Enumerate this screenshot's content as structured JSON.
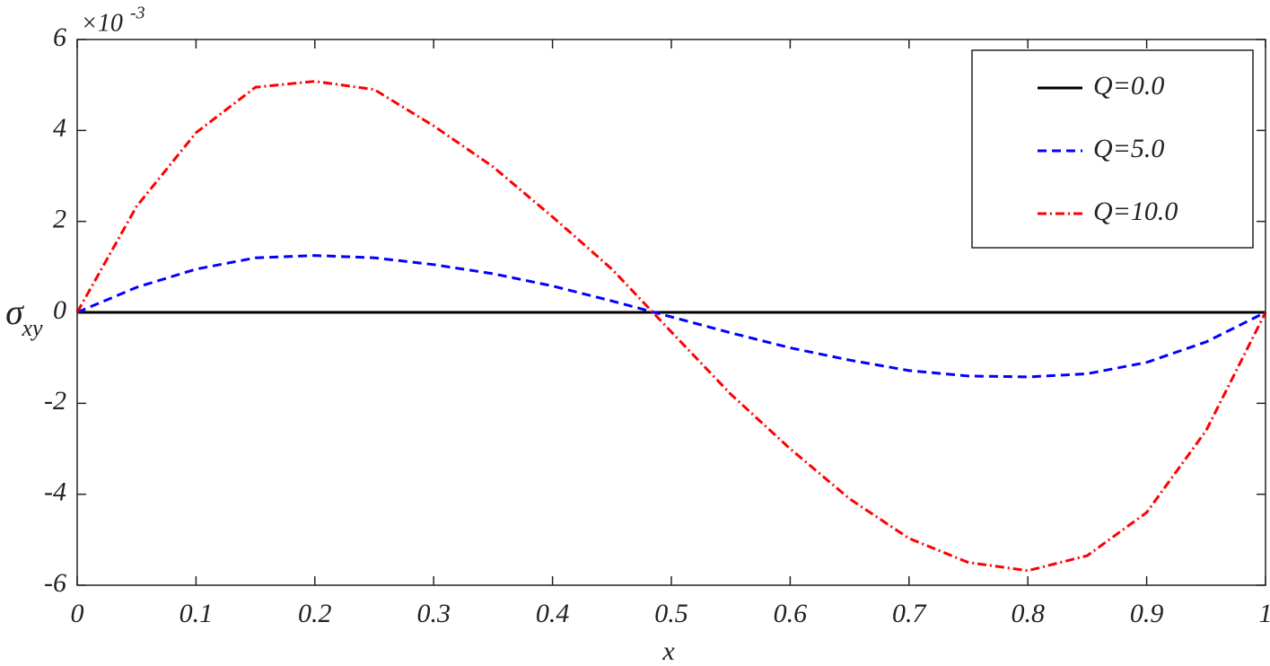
{
  "chart_data": {
    "type": "line",
    "x_label": "x",
    "y_label": "σ",
    "y_label_subscript": "xy",
    "axis_multiplier": {
      "base": "×10",
      "exponent": "-3"
    },
    "x": [
      0,
      0.05,
      0.1,
      0.15,
      0.2,
      0.25,
      0.3,
      0.35,
      0.4,
      0.45,
      0.5,
      0.55,
      0.6,
      0.65,
      0.7,
      0.75,
      0.8,
      0.85,
      0.9,
      0.95,
      1
    ],
    "series": [
      {
        "name": "Q=0.0",
        "color": "#000000",
        "style": "solid",
        "values": [
          0,
          0,
          0,
          0,
          0,
          0,
          0,
          0,
          0,
          0,
          0,
          0,
          0,
          0,
          0,
          0,
          0,
          0,
          0,
          0,
          0
        ]
      },
      {
        "name": "Q=5.0",
        "color": "#0000ff",
        "style": "dashed",
        "values": [
          0,
          0.55,
          0.95,
          1.2,
          1.25,
          1.2,
          1.05,
          0.85,
          0.58,
          0.25,
          -0.1,
          -0.45,
          -0.78,
          -1.05,
          -1.28,
          -1.4,
          -1.42,
          -1.35,
          -1.1,
          -0.65,
          0
        ]
      },
      {
        "name": "Q=10.0",
        "color": "#ff0000",
        "style": "dashdot",
        "values": [
          0,
          2.33,
          3.95,
          4.95,
          5.08,
          4.9,
          4.1,
          3.2,
          2.1,
          0.95,
          -0.43,
          -1.8,
          -3.0,
          -4.1,
          -4.97,
          -5.5,
          -5.68,
          -5.35,
          -4.4,
          -2.6,
          0
        ]
      }
    ],
    "xlim": [
      0,
      1
    ],
    "xticks": [
      0,
      0.1,
      0.2,
      0.3,
      0.4,
      0.5,
      0.6,
      0.7,
      0.8,
      0.9,
      1
    ],
    "ylim": [
      -6,
      6
    ],
    "yticks": [
      -6,
      -4,
      -2,
      0,
      2,
      4,
      6
    ],
    "legend": "upper-right"
  }
}
